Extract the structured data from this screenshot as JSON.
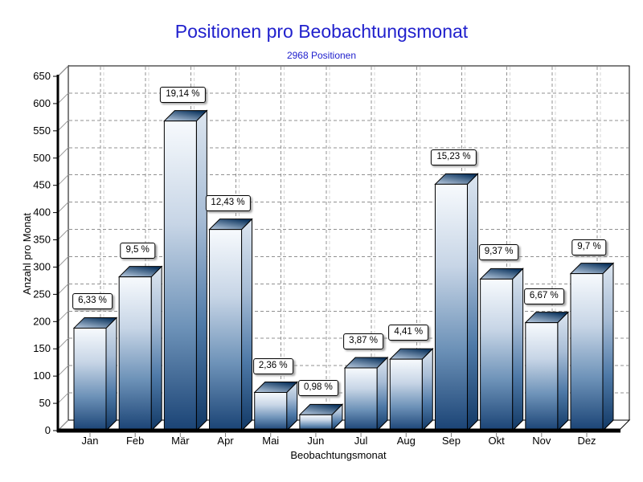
{
  "page": {
    "title": "Positionen pro Beobachtungsmonat",
    "subtitle": "2968 Positionen",
    "title_color": "#2121cd"
  },
  "chart_data": {
    "type": "bar",
    "style": "3d-column",
    "title": "Positionen pro Beobachtungsmonat",
    "subtitle": "2968 Positionen",
    "total_positions": 2968,
    "xlabel": "Beobachtungsmonat",
    "ylabel": "Anzahl pro Monat",
    "ylim": [
      0,
      650
    ],
    "ytick_step": 50,
    "grid": "dashed",
    "legend": "none",
    "categories": [
      "Jan",
      "Feb",
      "Mär",
      "Apr",
      "Mai",
      "Jun",
      "Jul",
      "Aug",
      "Sep",
      "Okt",
      "Nov",
      "Dez"
    ],
    "values": [
      188,
      282,
      568,
      369,
      70,
      29,
      115,
      131,
      452,
      278,
      198,
      288
    ],
    "percent_labels": [
      "6,33 %",
      "9,5 %",
      "19,14 %",
      "12,43 %",
      "2,36 %",
      "0,98 %",
      "3,87 %",
      "4,41 %",
      "15,23 %",
      "9,37 %",
      "6,67 %",
      "9,7 %"
    ],
    "colors": {
      "front_face": [
        "#f7fafd",
        "#c7d5e6",
        "#6d92b8",
        "#1a4375"
      ],
      "side_face": [
        "#dde6f0",
        "#a8bdd6",
        "#4f7aa8",
        "#113865"
      ],
      "top_face_front": "#bfd0e4",
      "top_face_back": "#0d355f",
      "grid_line": "#909090",
      "grid_echo": "#d4d4d4",
      "axis_line": "#000000",
      "wall_fill": "#ffffff",
      "label_box_bg": "#ffffff",
      "label_box_border": "#000000",
      "text": "#000000"
    }
  }
}
